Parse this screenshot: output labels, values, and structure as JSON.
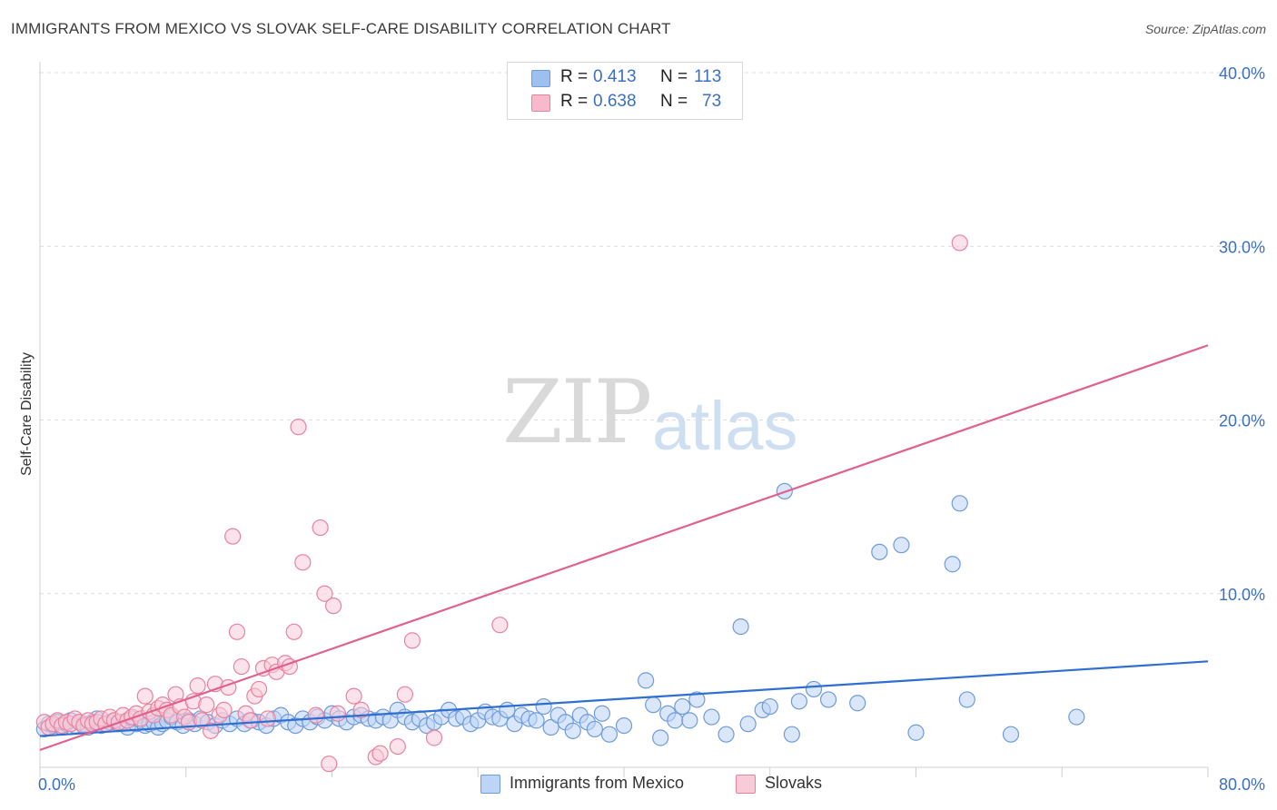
{
  "header": {
    "title": "IMMIGRANTS FROM MEXICO VS SLOVAK SELF-CARE DISABILITY CORRELATION CHART",
    "source": "Source: ZipAtlas.com"
  },
  "watermark": {
    "part1": "ZIP",
    "part2": "atlas"
  },
  "legend": {
    "rows": [
      {
        "r_label": "R =",
        "r_value": "0.413",
        "n_label": "N =",
        "n_value": "113",
        "color": "#9dc0f0",
        "border": "#6f9bd8"
      },
      {
        "r_label": "R =",
        "r_value": "0.638",
        "n_label": "N =",
        "n_value": "73",
        "color": "#f7b9cb",
        "border": "#e8839f"
      }
    ]
  },
  "bottom_legend": [
    {
      "label": "Immigrants from Mexico",
      "color": "#bcd4f6",
      "border": "#6f9bd8"
    },
    {
      "label": "Slovaks",
      "color": "#f9cbd8",
      "border": "#e8839f"
    }
  ],
  "chart_data": {
    "type": "scatter",
    "title": "IMMIGRANTS FROM MEXICO VS SLOVAK SELF-CARE DISABILITY CORRELATION CHART",
    "xlabel": "",
    "ylabel": "Self-Care Disability",
    "xlim": [
      0,
      80
    ],
    "ylim": [
      0,
      40
    ],
    "x_tick_labels": [
      {
        "value": 0,
        "label": "0.0%"
      },
      {
        "value": 80,
        "label": "80.0%"
      }
    ],
    "y_tick_labels": [
      {
        "value": 10,
        "label": "10.0%"
      },
      {
        "value": 20,
        "label": "20.0%"
      },
      {
        "value": 30,
        "label": "30.0%"
      },
      {
        "value": 40,
        "label": "40.0%"
      }
    ],
    "grid": true,
    "legend_position": "top-center",
    "series": [
      {
        "name": "Immigrants from Mexico",
        "color": "#6f9bd8",
        "fill": "#bcd4f6",
        "trend": {
          "x": [
            0,
            80
          ],
          "y": [
            1.8,
            6.1
          ],
          "color": "#2f6fd0"
        },
        "points": [
          [
            0.3,
            2.2
          ],
          [
            0.6,
            2.5
          ],
          [
            0.9,
            2.4
          ],
          [
            1.2,
            2.6
          ],
          [
            1.5,
            2.3
          ],
          [
            1.8,
            2.5
          ],
          [
            2.1,
            2.7
          ],
          [
            2.4,
            2.4
          ],
          [
            2.7,
            2.6
          ],
          [
            3.0,
            2.5
          ],
          [
            3.3,
            2.3
          ],
          [
            3.6,
            2.6
          ],
          [
            3.9,
            2.8
          ],
          [
            4.2,
            2.4
          ],
          [
            4.5,
            2.5
          ],
          [
            4.8,
            2.6
          ],
          [
            5.1,
            2.7
          ],
          [
            5.4,
            2.5
          ],
          [
            5.7,
            2.6
          ],
          [
            6.0,
            2.3
          ],
          [
            6.3,
            2.8
          ],
          [
            6.6,
            2.5
          ],
          [
            6.9,
            2.7
          ],
          [
            7.2,
            2.4
          ],
          [
            7.5,
            2.5
          ],
          [
            7.8,
            2.6
          ],
          [
            8.1,
            2.3
          ],
          [
            8.4,
            2.5
          ],
          [
            8.7,
            2.7
          ],
          [
            9.0,
            2.9
          ],
          [
            9.4,
            2.6
          ],
          [
            9.8,
            2.4
          ],
          [
            10.2,
            2.7
          ],
          [
            10.6,
            2.5
          ],
          [
            11.0,
            2.8
          ],
          [
            11.5,
            2.6
          ],
          [
            12.0,
            2.4
          ],
          [
            12.5,
            2.7
          ],
          [
            13.0,
            2.5
          ],
          [
            13.5,
            2.8
          ],
          [
            14.0,
            2.5
          ],
          [
            14.5,
            2.7
          ],
          [
            15.0,
            2.6
          ],
          [
            15.5,
            2.4
          ],
          [
            16.0,
            2.8
          ],
          [
            16.5,
            3.0
          ],
          [
            17.0,
            2.6
          ],
          [
            17.5,
            2.4
          ],
          [
            18.0,
            2.8
          ],
          [
            18.5,
            2.6
          ],
          [
            19.0,
            2.9
          ],
          [
            19.5,
            2.7
          ],
          [
            20.0,
            3.1
          ],
          [
            20.5,
            2.8
          ],
          [
            21.0,
            2.6
          ],
          [
            21.5,
            2.9
          ],
          [
            22.0,
            3.0
          ],
          [
            22.5,
            2.8
          ],
          [
            23.0,
            2.7
          ],
          [
            23.5,
            2.9
          ],
          [
            24.0,
            2.7
          ],
          [
            24.5,
            3.3
          ],
          [
            25.0,
            2.9
          ],
          [
            25.5,
            2.6
          ],
          [
            26.0,
            2.8
          ],
          [
            26.5,
            2.4
          ],
          [
            27.0,
            2.6
          ],
          [
            27.5,
            2.9
          ],
          [
            28.0,
            3.3
          ],
          [
            28.5,
            2.8
          ],
          [
            29.0,
            2.9
          ],
          [
            29.5,
            2.5
          ],
          [
            30.0,
            2.7
          ],
          [
            30.5,
            3.2
          ],
          [
            31.0,
            2.9
          ],
          [
            31.5,
            2.8
          ],
          [
            32.0,
            3.3
          ],
          [
            32.5,
            2.5
          ],
          [
            33.0,
            3.0
          ],
          [
            33.5,
            2.8
          ],
          [
            34.0,
            2.7
          ],
          [
            34.5,
            3.5
          ],
          [
            35.0,
            2.3
          ],
          [
            35.5,
            3.0
          ],
          [
            36.0,
            2.6
          ],
          [
            36.5,
            2.1
          ],
          [
            37.0,
            3.0
          ],
          [
            37.5,
            2.6
          ],
          [
            38.0,
            2.2
          ],
          [
            38.5,
            3.1
          ],
          [
            39.0,
            1.9
          ],
          [
            40.0,
            2.4
          ],
          [
            41.5,
            5.0
          ],
          [
            42.0,
            3.6
          ],
          [
            42.5,
            1.7
          ],
          [
            43.0,
            3.1
          ],
          [
            43.5,
            2.7
          ],
          [
            44.0,
            3.5
          ],
          [
            44.5,
            2.7
          ],
          [
            45.0,
            3.9
          ],
          [
            46.0,
            2.9
          ],
          [
            47.0,
            1.9
          ],
          [
            48.0,
            8.1
          ],
          [
            48.5,
            2.5
          ],
          [
            49.5,
            3.3
          ],
          [
            50.0,
            3.5
          ],
          [
            51.0,
            15.9
          ],
          [
            51.5,
            1.9
          ],
          [
            52.0,
            3.8
          ],
          [
            53.0,
            4.5
          ],
          [
            54.0,
            3.9
          ],
          [
            56.0,
            3.7
          ],
          [
            57.5,
            12.4
          ],
          [
            59.0,
            12.8
          ],
          [
            60.0,
            2.0
          ],
          [
            62.5,
            11.7
          ],
          [
            63.0,
            15.2
          ],
          [
            63.5,
            3.9
          ],
          [
            66.5,
            1.9
          ],
          [
            71.0,
            2.9
          ]
        ]
      },
      {
        "name": "Slovaks",
        "color": "#e8839f",
        "fill": "#f9cbd8",
        "trend": {
          "x": [
            0,
            80
          ],
          "y": [
            1.0,
            24.3
          ],
          "color": "#e0608e"
        },
        "points": [
          [
            0.3,
            2.6
          ],
          [
            0.6,
            2.3
          ],
          [
            0.9,
            2.5
          ],
          [
            1.2,
            2.7
          ],
          [
            1.5,
            2.4
          ],
          [
            1.8,
            2.6
          ],
          [
            2.1,
            2.5
          ],
          [
            2.4,
            2.8
          ],
          [
            2.7,
            2.6
          ],
          [
            3.0,
            2.4
          ],
          [
            3.3,
            2.7
          ],
          [
            3.6,
            2.5
          ],
          [
            3.9,
            2.6
          ],
          [
            4.2,
            2.8
          ],
          [
            4.5,
            2.5
          ],
          [
            4.8,
            2.9
          ],
          [
            5.1,
            2.7
          ],
          [
            5.4,
            2.6
          ],
          [
            5.7,
            3.0
          ],
          [
            6.0,
            2.7
          ],
          [
            6.3,
            2.9
          ],
          [
            6.6,
            3.1
          ],
          [
            6.9,
            2.8
          ],
          [
            7.2,
            4.1
          ],
          [
            7.5,
            3.2
          ],
          [
            7.8,
            3.0
          ],
          [
            8.1,
            3.4
          ],
          [
            8.4,
            3.6
          ],
          [
            8.7,
            3.3
          ],
          [
            9.0,
            3.0
          ],
          [
            9.3,
            4.2
          ],
          [
            9.6,
            3.5
          ],
          [
            9.9,
            2.9
          ],
          [
            10.2,
            2.6
          ],
          [
            10.5,
            3.8
          ],
          [
            10.8,
            4.7
          ],
          [
            11.1,
            2.7
          ],
          [
            11.4,
            3.6
          ],
          [
            11.7,
            2.1
          ],
          [
            12.0,
            4.8
          ],
          [
            12.3,
            3.0
          ],
          [
            12.6,
            3.3
          ],
          [
            12.9,
            4.6
          ],
          [
            13.2,
            13.3
          ],
          [
            13.5,
            7.8
          ],
          [
            13.8,
            5.8
          ],
          [
            14.1,
            3.1
          ],
          [
            14.4,
            2.7
          ],
          [
            14.7,
            4.1
          ],
          [
            15.0,
            4.5
          ],
          [
            15.3,
            5.7
          ],
          [
            15.6,
            2.8
          ],
          [
            15.9,
            5.9
          ],
          [
            16.2,
            5.5
          ],
          [
            16.8,
            6.0
          ],
          [
            17.1,
            5.8
          ],
          [
            17.4,
            7.8
          ],
          [
            17.7,
            19.6
          ],
          [
            18.0,
            11.8
          ],
          [
            18.9,
            3.0
          ],
          [
            19.2,
            13.8
          ],
          [
            19.5,
            10.0
          ],
          [
            19.8,
            0.2
          ],
          [
            20.1,
            9.3
          ],
          [
            20.4,
            3.1
          ],
          [
            21.5,
            4.1
          ],
          [
            22.0,
            3.3
          ],
          [
            23.0,
            0.6
          ],
          [
            23.3,
            0.8
          ],
          [
            24.5,
            1.2
          ],
          [
            25.0,
            4.2
          ],
          [
            25.5,
            7.3
          ],
          [
            27.0,
            1.7
          ],
          [
            31.5,
            8.2
          ],
          [
            63.0,
            30.2
          ]
        ]
      }
    ]
  }
}
